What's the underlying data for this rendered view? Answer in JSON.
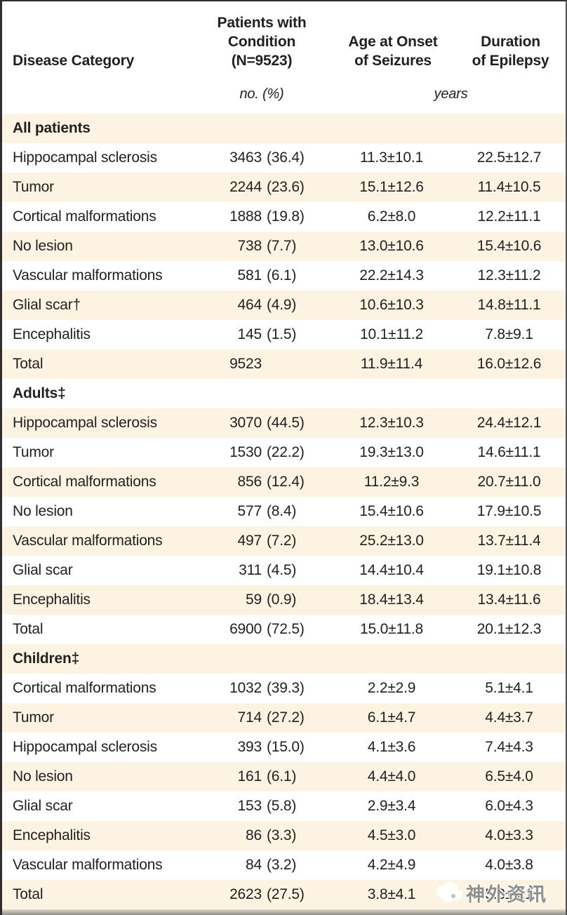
{
  "colors": {
    "stripe": "#fcf3e2",
    "text": "#231f20",
    "border_dark": "#2e2e2e",
    "bottom_band": "#908e89",
    "watermark_gray": "#8f8f8c"
  },
  "header": {
    "disease_category": "Disease Category",
    "patients": "Patients with\nCondition\n(N=9523)",
    "onset": "Age at Onset\nof Seizures",
    "duration": "Duration\nof Epilepsy",
    "unit_patients": "no. (%)",
    "unit_years": "years"
  },
  "table": {
    "rows": [
      {
        "type": "section",
        "label": "All patients",
        "n": "",
        "pct": "",
        "onset": "",
        "duration": ""
      },
      {
        "type": "data",
        "label": "Hippocampal sclerosis",
        "n": "3463",
        "pct": "(36.4)",
        "onset": "11.3±10.1",
        "duration": "22.5±12.7"
      },
      {
        "type": "data",
        "label": "Tumor",
        "n": "2244",
        "pct": "(23.6)",
        "onset": "15.1±12.6",
        "duration": "11.4±10.5"
      },
      {
        "type": "data",
        "label": "Cortical malformations",
        "n": "1888",
        "pct": "(19.8)",
        "onset": "6.2±8.0",
        "duration": "12.2±11.1"
      },
      {
        "type": "data",
        "label": "No lesion",
        "n": "738",
        "pct": "(7.7)",
        "onset": "13.0±10.6",
        "duration": "15.4±10.6"
      },
      {
        "type": "data",
        "label": "Vascular malformations",
        "n": "581",
        "pct": "(6.1)",
        "onset": "22.2±14.3",
        "duration": "12.3±11.2"
      },
      {
        "type": "data",
        "label": "Glial scar†",
        "n": "464",
        "pct": "(4.9)",
        "onset": "10.6±10.3",
        "duration": "14.8±11.1"
      },
      {
        "type": "data",
        "label": "Encephalitis",
        "n": "145",
        "pct": "(1.5)",
        "onset": "10.1±11.2",
        "duration": "7.8±9.1"
      },
      {
        "type": "data",
        "label": "Total",
        "n": "9523",
        "pct": "",
        "onset": "11.9±11.4",
        "duration": "16.0±12.6"
      },
      {
        "type": "section",
        "label": "Adults‡",
        "n": "",
        "pct": "",
        "onset": "",
        "duration": ""
      },
      {
        "type": "data",
        "label": "Hippocampal sclerosis",
        "n": "3070",
        "pct": "(44.5)",
        "onset": "12.3±10.3",
        "duration": "24.4±12.1"
      },
      {
        "type": "data",
        "label": "Tumor",
        "n": "1530",
        "pct": "(22.2)",
        "onset": "19.3±13.0",
        "duration": "14.6±11.1"
      },
      {
        "type": "data",
        "label": "Cortical malformations",
        "n": "856",
        "pct": "(12.4)",
        "onset": "11.2±9.3",
        "duration": "20.7±11.0"
      },
      {
        "type": "data",
        "label": "No lesion",
        "n": "577",
        "pct": "(8.4)",
        "onset": "15.4±10.6",
        "duration": "17.9±10.5"
      },
      {
        "type": "data",
        "label": "Vascular malformations",
        "n": "497",
        "pct": "(7.2)",
        "onset": "25.2±13.0",
        "duration": "13.7±11.4"
      },
      {
        "type": "data",
        "label": "Glial scar",
        "n": "311",
        "pct": "(4.5)",
        "onset": "14.4±10.4",
        "duration": "19.1±10.8"
      },
      {
        "type": "data",
        "label": "Encephalitis",
        "n": "59",
        "pct": "(0.9)",
        "onset": "18.4±13.4",
        "duration": "13.4±11.6"
      },
      {
        "type": "data",
        "label": "Total",
        "n": "6900",
        "pct": "(72.5)",
        "onset": "15.0±11.8",
        "duration": "20.1±12.3"
      },
      {
        "type": "section",
        "label": "Children‡",
        "n": "",
        "pct": "",
        "onset": "",
        "duration": ""
      },
      {
        "type": "data",
        "label": "Cortical malformations",
        "n": "1032",
        "pct": "(39.3)",
        "onset": "2.2±2.9",
        "duration": "5.1±4.1"
      },
      {
        "type": "data",
        "label": "Tumor",
        "n": "714",
        "pct": "(27.2)",
        "onset": "6.1±4.7",
        "duration": "4.4±3.7"
      },
      {
        "type": "data",
        "label": "Hippocampal sclerosis",
        "n": "393",
        "pct": "(15.0)",
        "onset": "4.1±3.6",
        "duration": "7.4±4.3"
      },
      {
        "type": "data",
        "label": "No lesion",
        "n": "161",
        "pct": "(6.1)",
        "onset": "4.4±4.0",
        "duration": "6.5±4.0"
      },
      {
        "type": "data",
        "label": "Glial scar",
        "n": "153",
        "pct": "(5.8)",
        "onset": "2.9±3.4",
        "duration": "6.0±4.3"
      },
      {
        "type": "data",
        "label": "Encephalitis",
        "n": "86",
        "pct": "(3.3)",
        "onset": "4.5±3.0",
        "duration": "4.0±3.3"
      },
      {
        "type": "data",
        "label": "Vascular malformations",
        "n": "84",
        "pct": "(3.2)",
        "onset": "4.2±4.9",
        "duration": "4.0±3.8"
      },
      {
        "type": "data",
        "label": "Total",
        "n": "2623",
        "pct": "(27.5)",
        "onset": "3.8±4.1",
        "duration": "5.3±4.1"
      }
    ]
  },
  "watermark": {
    "text": "神外资讯"
  }
}
